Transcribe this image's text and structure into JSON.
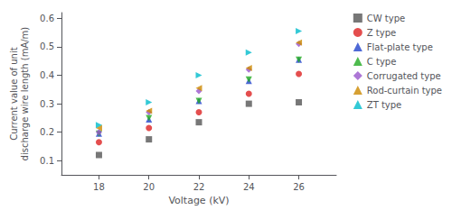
{
  "chart_data": {
    "type": "scatter",
    "x": [
      18,
      20,
      22,
      24,
      26
    ],
    "series": [
      {
        "name": "CW type",
        "color": "#555555",
        "marker": "square",
        "values": [
          0.12,
          0.175,
          0.235,
          0.3,
          0.305
        ]
      },
      {
        "name": "Z type",
        "color": "#dd2222",
        "marker": "circle",
        "values": [
          0.165,
          0.215,
          0.27,
          0.335,
          0.405
        ]
      },
      {
        "name": "Flat-plate type",
        "color": "#2244cc",
        "marker": "triangle-up",
        "values": [
          0.195,
          0.245,
          0.31,
          0.38,
          0.455
        ]
      },
      {
        "name": "C type",
        "color": "#22aa22",
        "marker": "triangle-down",
        "values": [
          0.195,
          0.25,
          0.31,
          0.385,
          0.455
        ]
      },
      {
        "name": "Corrugated type",
        "color": "#9955cc",
        "marker": "diamond",
        "values": [
          0.2,
          0.27,
          0.345,
          0.42,
          0.51
        ]
      },
      {
        "name": "Rod-curtain type",
        "color": "#cc8800",
        "marker": "triangle-left",
        "values": [
          0.215,
          0.275,
          0.355,
          0.425,
          0.515
        ]
      },
      {
        "name": "ZT type",
        "color": "#00bbcc",
        "marker": "triangle-right",
        "values": [
          0.225,
          0.305,
          0.4,
          0.48,
          0.555
        ]
      }
    ],
    "x_label": "Voltage (kV)",
    "y_label": "Current value of unit\ndischarge wire length (mA/m)",
    "xlim": [
      16.5,
      27.5
    ],
    "ylim": [
      0.05,
      0.62
    ],
    "xticks": [
      18,
      20,
      22,
      24,
      26
    ],
    "yticks": [
      0.1,
      0.2,
      0.3,
      0.4,
      0.5,
      0.6
    ],
    "grid": false,
    "legend": "right"
  }
}
